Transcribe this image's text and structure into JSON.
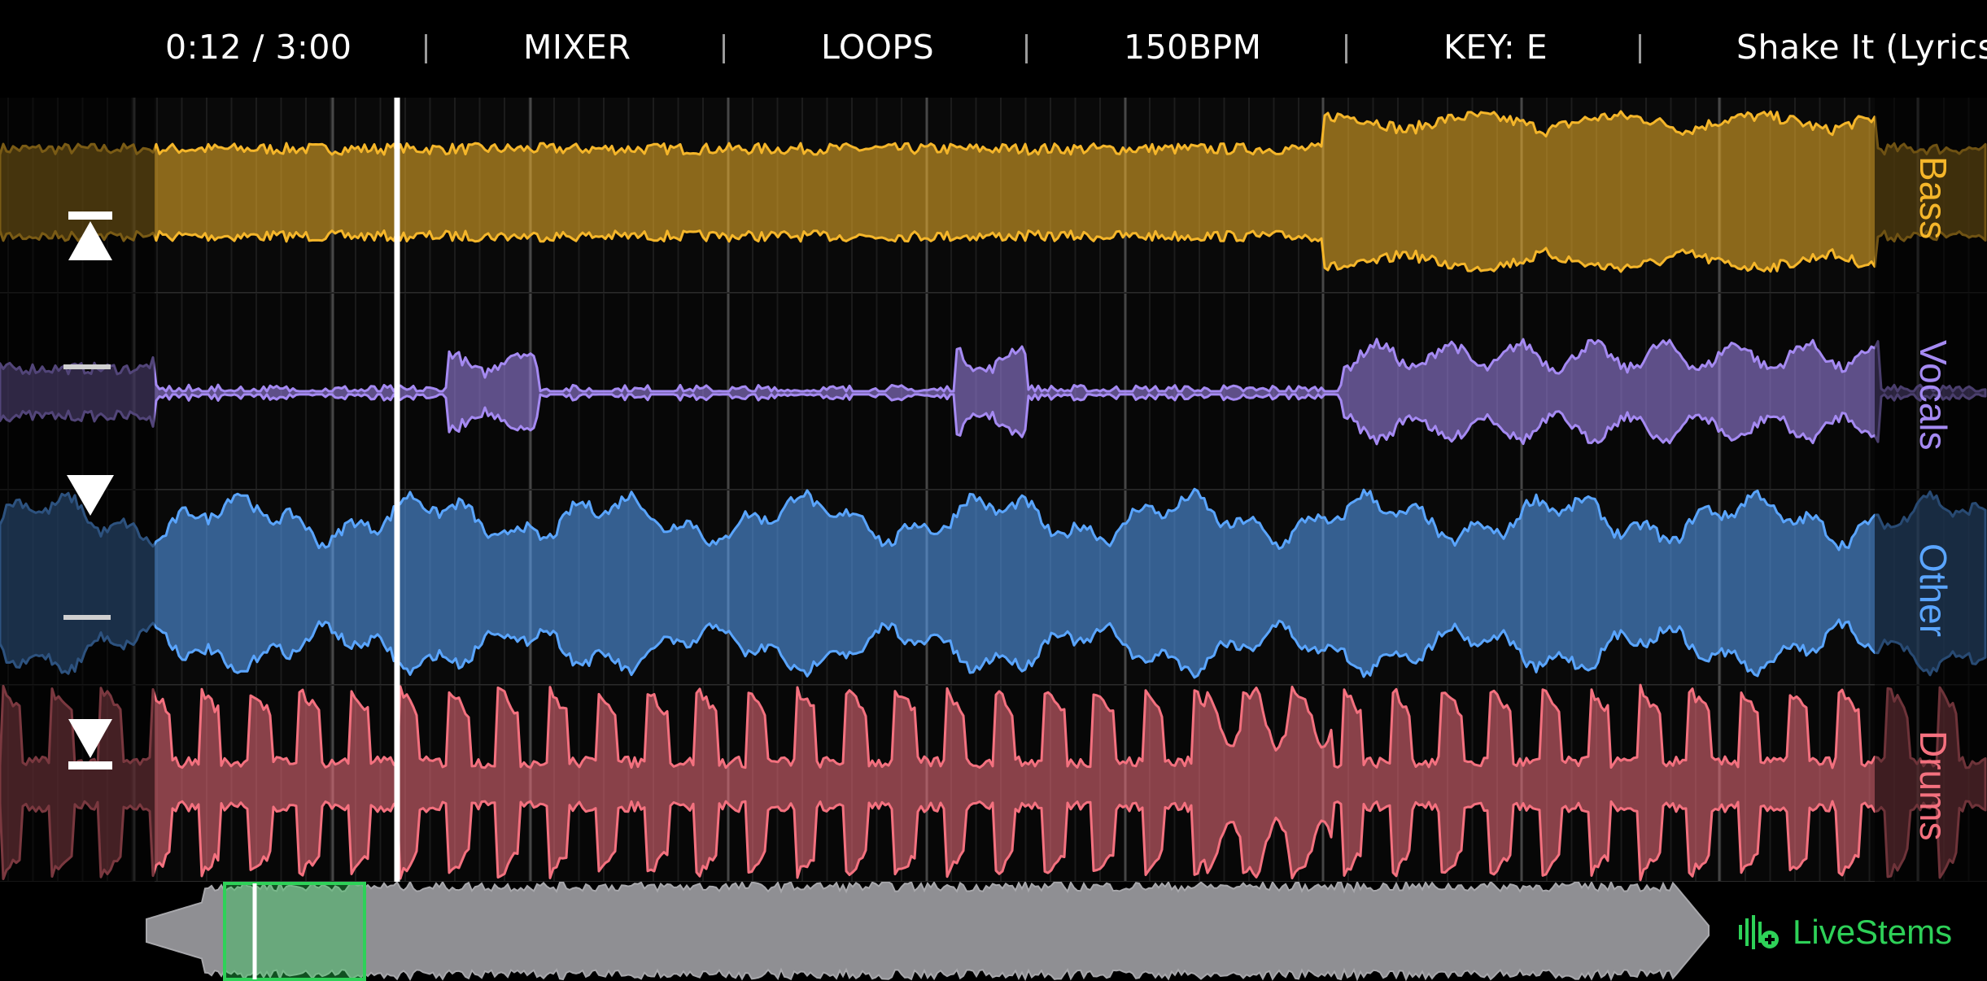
{
  "header": {
    "time": "0:12 / 3:00",
    "mixer_label": "MIXER",
    "loops_label": "LOOPS",
    "bpm": "150BPM",
    "key": "KEY: E",
    "song_title": "Shake It (Lyrics"
  },
  "stems": [
    {
      "name": "Bass",
      "color": "#f5b62a"
    },
    {
      "name": "Vocals",
      "color": "#a58af2"
    },
    {
      "name": "Other",
      "color": "#5aa5ff"
    },
    {
      "name": "Drums",
      "color": "#f4717f"
    }
  ],
  "controls": {
    "move_top_icon": "move-to-top-icon",
    "move_up_icon": "bar-icon",
    "move_down_icon": "triangle-down-icon",
    "bar_icon": "bar-icon",
    "move_bottom_icon": "move-to-bottom-icon"
  },
  "playhead": {
    "position_seconds": 12,
    "duration_seconds": 180
  },
  "brand": {
    "name": "LiveStems",
    "color": "#2ed158",
    "icon": "waveform-plus-icon"
  }
}
